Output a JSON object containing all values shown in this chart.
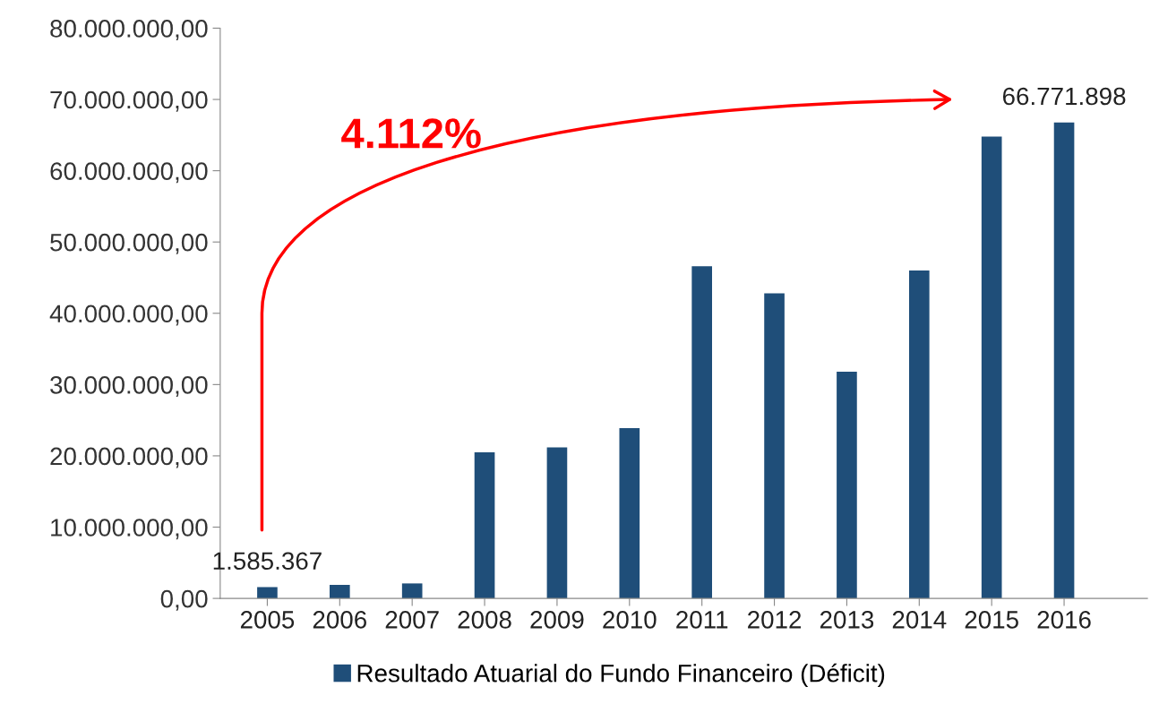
{
  "chart_data": {
    "type": "bar",
    "categories": [
      "2005",
      "2006",
      "2007",
      "2008",
      "2009",
      "2010",
      "2011",
      "2012",
      "2013",
      "2014",
      "2015",
      "2016"
    ],
    "series": [
      {
        "name": "Resultado Atuarial do Fundo Financeiro (Déficit)",
        "color": "#1f4e79",
        "values": [
          1585367,
          1900000,
          2100000,
          20500000,
          21200000,
          23900000,
          46600000,
          42800000,
          31800000,
          46000000,
          64800000,
          66771898
        ],
        "value_labels": [
          "1.585.367",
          null,
          null,
          null,
          null,
          null,
          null,
          null,
          null,
          null,
          null,
          "66.771.898"
        ]
      }
    ],
    "ylim": [
      0,
      80000000
    ],
    "yticks": [
      {
        "value": 0,
        "label": "0,00"
      },
      {
        "value": 10000000,
        "label": "10.000.000,00"
      },
      {
        "value": 20000000,
        "label": "20.000.000,00"
      },
      {
        "value": 30000000,
        "label": "30.000.000,00"
      },
      {
        "value": 40000000,
        "label": "40.000.000,00"
      },
      {
        "value": 50000000,
        "label": "50.000.000,00"
      },
      {
        "value": 60000000,
        "label": "60.000.000,00"
      },
      {
        "value": 70000000,
        "label": "70.000.000,00"
      },
      {
        "value": 80000000,
        "label": "80.000.000,00"
      }
    ],
    "annotations": [
      "4.112%"
    ],
    "grid": false,
    "legend": "bottom"
  }
}
